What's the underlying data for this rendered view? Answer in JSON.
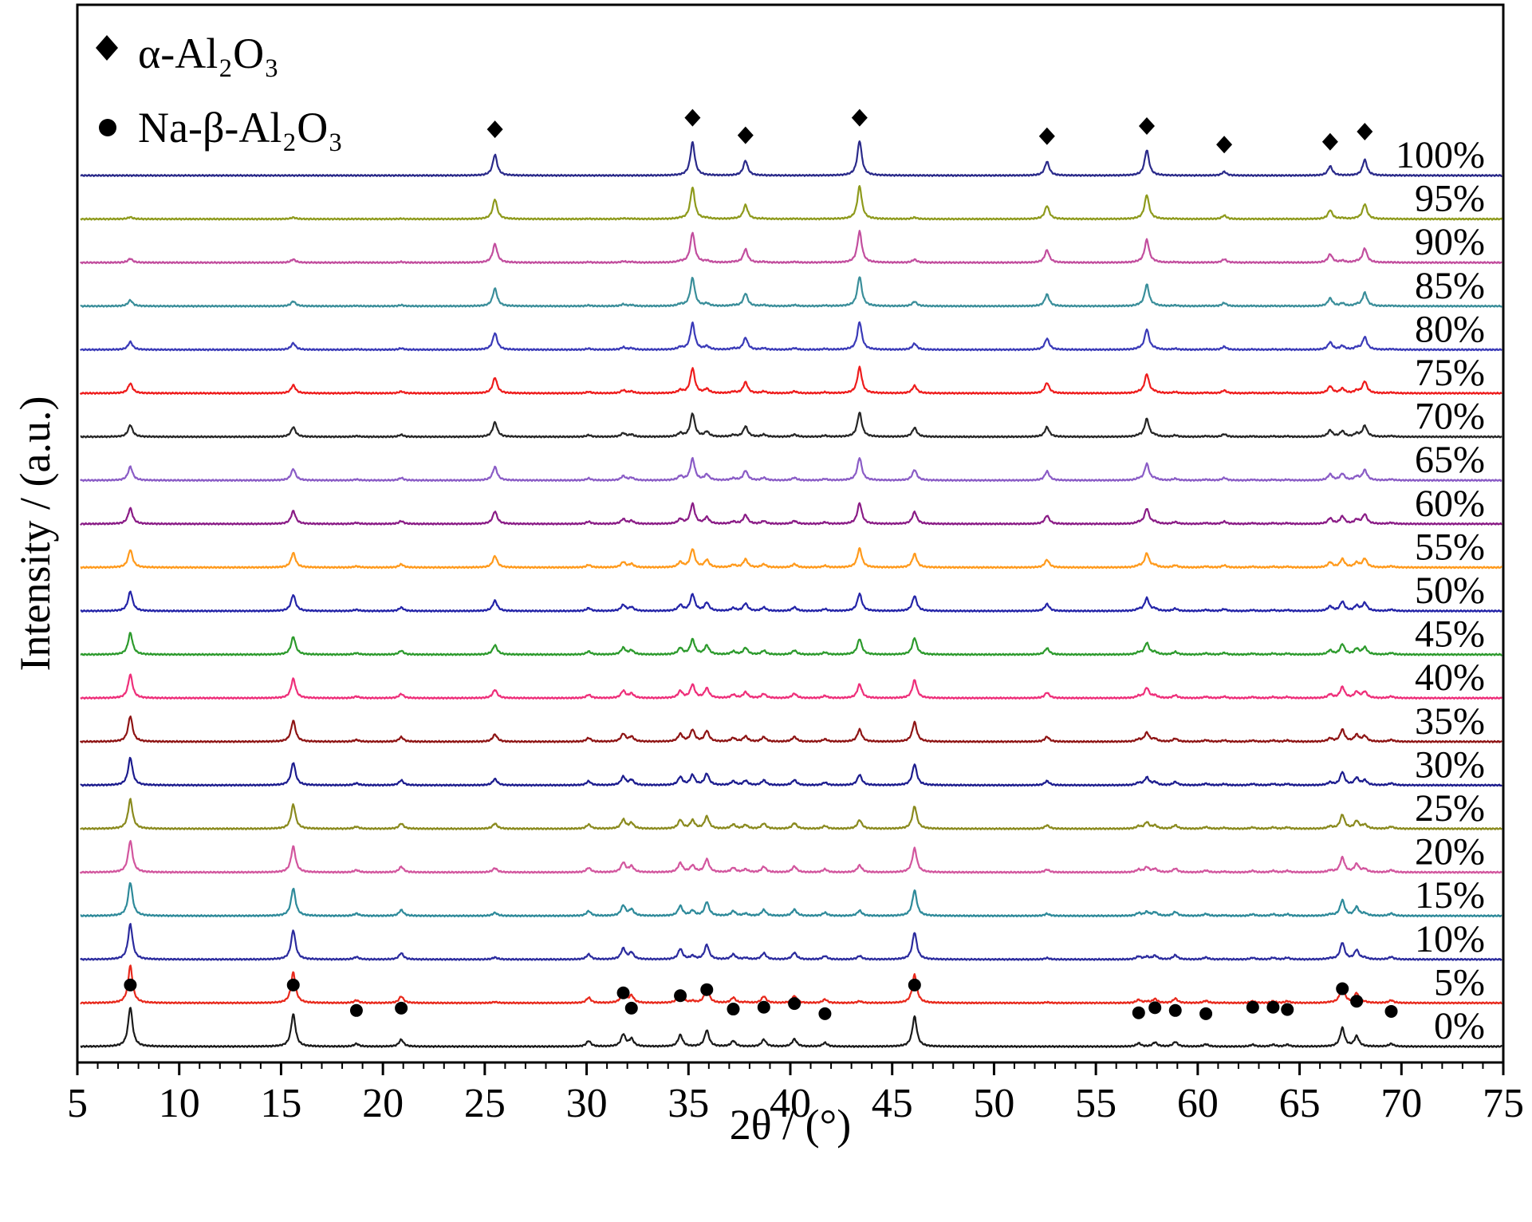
{
  "chart_data": {
    "type": "line",
    "xlabel": "2θ / (°)",
    "ylabel": "Intensity / (a.u.)",
    "xlim": [
      5,
      75
    ],
    "x_ticks": [
      5,
      10,
      15,
      20,
      25,
      30,
      35,
      40,
      45,
      50,
      55,
      60,
      65,
      70,
      75
    ],
    "legend": {
      "placement": "top-left",
      "items": [
        {
          "marker": "diamond",
          "label": "α-Al₂O₃"
        },
        {
          "marker": "circle",
          "label": "Na-β-Al₂O₃"
        }
      ]
    },
    "alpha_peaks": [
      {
        "x": 25.5,
        "h": 0.45
      },
      {
        "x": 35.2,
        "h": 0.72
      },
      {
        "x": 37.8,
        "h": 0.32
      },
      {
        "x": 43.4,
        "h": 0.75
      },
      {
        "x": 52.6,
        "h": 0.3
      },
      {
        "x": 57.5,
        "h": 0.55
      },
      {
        "x": 61.3,
        "h": 0.08
      },
      {
        "x": 66.5,
        "h": 0.2
      },
      {
        "x": 68.2,
        "h": 0.34
      }
    ],
    "beta_peaks": [
      {
        "x": 7.6,
        "h": 0.85
      },
      {
        "x": 15.6,
        "h": 0.7
      },
      {
        "x": 18.7,
        "h": 0.06
      },
      {
        "x": 20.9,
        "h": 0.15
      },
      {
        "x": 30.1,
        "h": 0.12
      },
      {
        "x": 31.8,
        "h": 0.26
      },
      {
        "x": 32.2,
        "h": 0.16
      },
      {
        "x": 34.6,
        "h": 0.25
      },
      {
        "x": 35.9,
        "h": 0.35
      },
      {
        "x": 37.2,
        "h": 0.12
      },
      {
        "x": 38.7,
        "h": 0.15
      },
      {
        "x": 40.2,
        "h": 0.16
      },
      {
        "x": 41.7,
        "h": 0.08
      },
      {
        "x": 46.1,
        "h": 0.65
      },
      {
        "x": 57.1,
        "h": 0.07
      },
      {
        "x": 57.9,
        "h": 0.09
      },
      {
        "x": 58.9,
        "h": 0.1
      },
      {
        "x": 60.4,
        "h": 0.05
      },
      {
        "x": 62.7,
        "h": 0.04
      },
      {
        "x": 63.7,
        "h": 0.04
      },
      {
        "x": 64.4,
        "h": 0.04
      },
      {
        "x": 67.1,
        "h": 0.4
      },
      {
        "x": 67.8,
        "h": 0.22
      },
      {
        "x": 69.5,
        "h": 0.06
      }
    ],
    "diamond_markers": [
      {
        "x": 25.5,
        "y": 0.55
      },
      {
        "x": 35.2,
        "y": 0.8
      },
      {
        "x": 37.8,
        "y": 0.42
      },
      {
        "x": 43.4,
        "y": 0.8
      },
      {
        "x": 52.6,
        "y": 0.4
      },
      {
        "x": 57.5,
        "y": 0.62
      },
      {
        "x": 61.3,
        "y": 0.22
      },
      {
        "x": 66.5,
        "y": 0.28
      },
      {
        "x": 68.2,
        "y": 0.5
      }
    ],
    "circle_markers": [
      {
        "x": 7.6,
        "y": 0.95
      },
      {
        "x": 15.6,
        "y": 0.95
      },
      {
        "x": 18.7,
        "y": 0.4
      },
      {
        "x": 20.9,
        "y": 0.45
      },
      {
        "x": 31.8,
        "y": 0.78
      },
      {
        "x": 32.2,
        "y": 0.45
      },
      {
        "x": 34.6,
        "y": 0.72
      },
      {
        "x": 35.9,
        "y": 0.85
      },
      {
        "x": 37.2,
        "y": 0.43
      },
      {
        "x": 38.7,
        "y": 0.47
      },
      {
        "x": 40.2,
        "y": 0.55
      },
      {
        "x": 41.7,
        "y": 0.33
      },
      {
        "x": 46.1,
        "y": 0.95
      },
      {
        "x": 57.1,
        "y": 0.35
      },
      {
        "x": 57.9,
        "y": 0.46
      },
      {
        "x": 58.9,
        "y": 0.4
      },
      {
        "x": 60.4,
        "y": 0.33
      },
      {
        "x": 62.7,
        "y": 0.47
      },
      {
        "x": 63.7,
        "y": 0.47
      },
      {
        "x": 64.4,
        "y": 0.42
      },
      {
        "x": 67.1,
        "y": 0.87
      },
      {
        "x": 67.8,
        "y": 0.6
      },
      {
        "x": 69.5,
        "y": 0.38
      }
    ],
    "series": [
      {
        "name": "0%",
        "alpha_fraction": 0.0,
        "color": "#1a1a1a"
      },
      {
        "name": "5%",
        "alpha_fraction": 0.05,
        "color": "#e8291c"
      },
      {
        "name": "10%",
        "alpha_fraction": 0.1,
        "color": "#2b2b9e"
      },
      {
        "name": "15%",
        "alpha_fraction": 0.15,
        "color": "#2e8a9a"
      },
      {
        "name": "20%",
        "alpha_fraction": 0.2,
        "color": "#d2569e"
      },
      {
        "name": "25%",
        "alpha_fraction": 0.25,
        "color": "#8a8a1e"
      },
      {
        "name": "30%",
        "alpha_fraction": 0.3,
        "color": "#1c1c8e"
      },
      {
        "name": "35%",
        "alpha_fraction": 0.35,
        "color": "#8e1414"
      },
      {
        "name": "40%",
        "alpha_fraction": 0.4,
        "color": "#ee2f7a"
      },
      {
        "name": "45%",
        "alpha_fraction": 0.45,
        "color": "#2c9a2c"
      },
      {
        "name": "50%",
        "alpha_fraction": 0.5,
        "color": "#2424a8"
      },
      {
        "name": "55%",
        "alpha_fraction": 0.55,
        "color": "#ff9a1c"
      },
      {
        "name": "60%",
        "alpha_fraction": 0.6,
        "color": "#8a1c86"
      },
      {
        "name": "65%",
        "alpha_fraction": 0.65,
        "color": "#8a5cc6"
      },
      {
        "name": "70%",
        "alpha_fraction": 0.7,
        "color": "#262626"
      },
      {
        "name": "75%",
        "alpha_fraction": 0.75,
        "color": "#ee1c1c"
      },
      {
        "name": "80%",
        "alpha_fraction": 0.8,
        "color": "#3a3ab8"
      },
      {
        "name": "85%",
        "alpha_fraction": 0.85,
        "color": "#3a8e9a"
      },
      {
        "name": "90%",
        "alpha_fraction": 0.9,
        "color": "#c24e9e"
      },
      {
        "name": "95%",
        "alpha_fraction": 0.95,
        "color": "#8e9a1c"
      },
      {
        "name": "100%",
        "alpha_fraction": 1.0,
        "color": "#2a2a8a"
      }
    ]
  }
}
